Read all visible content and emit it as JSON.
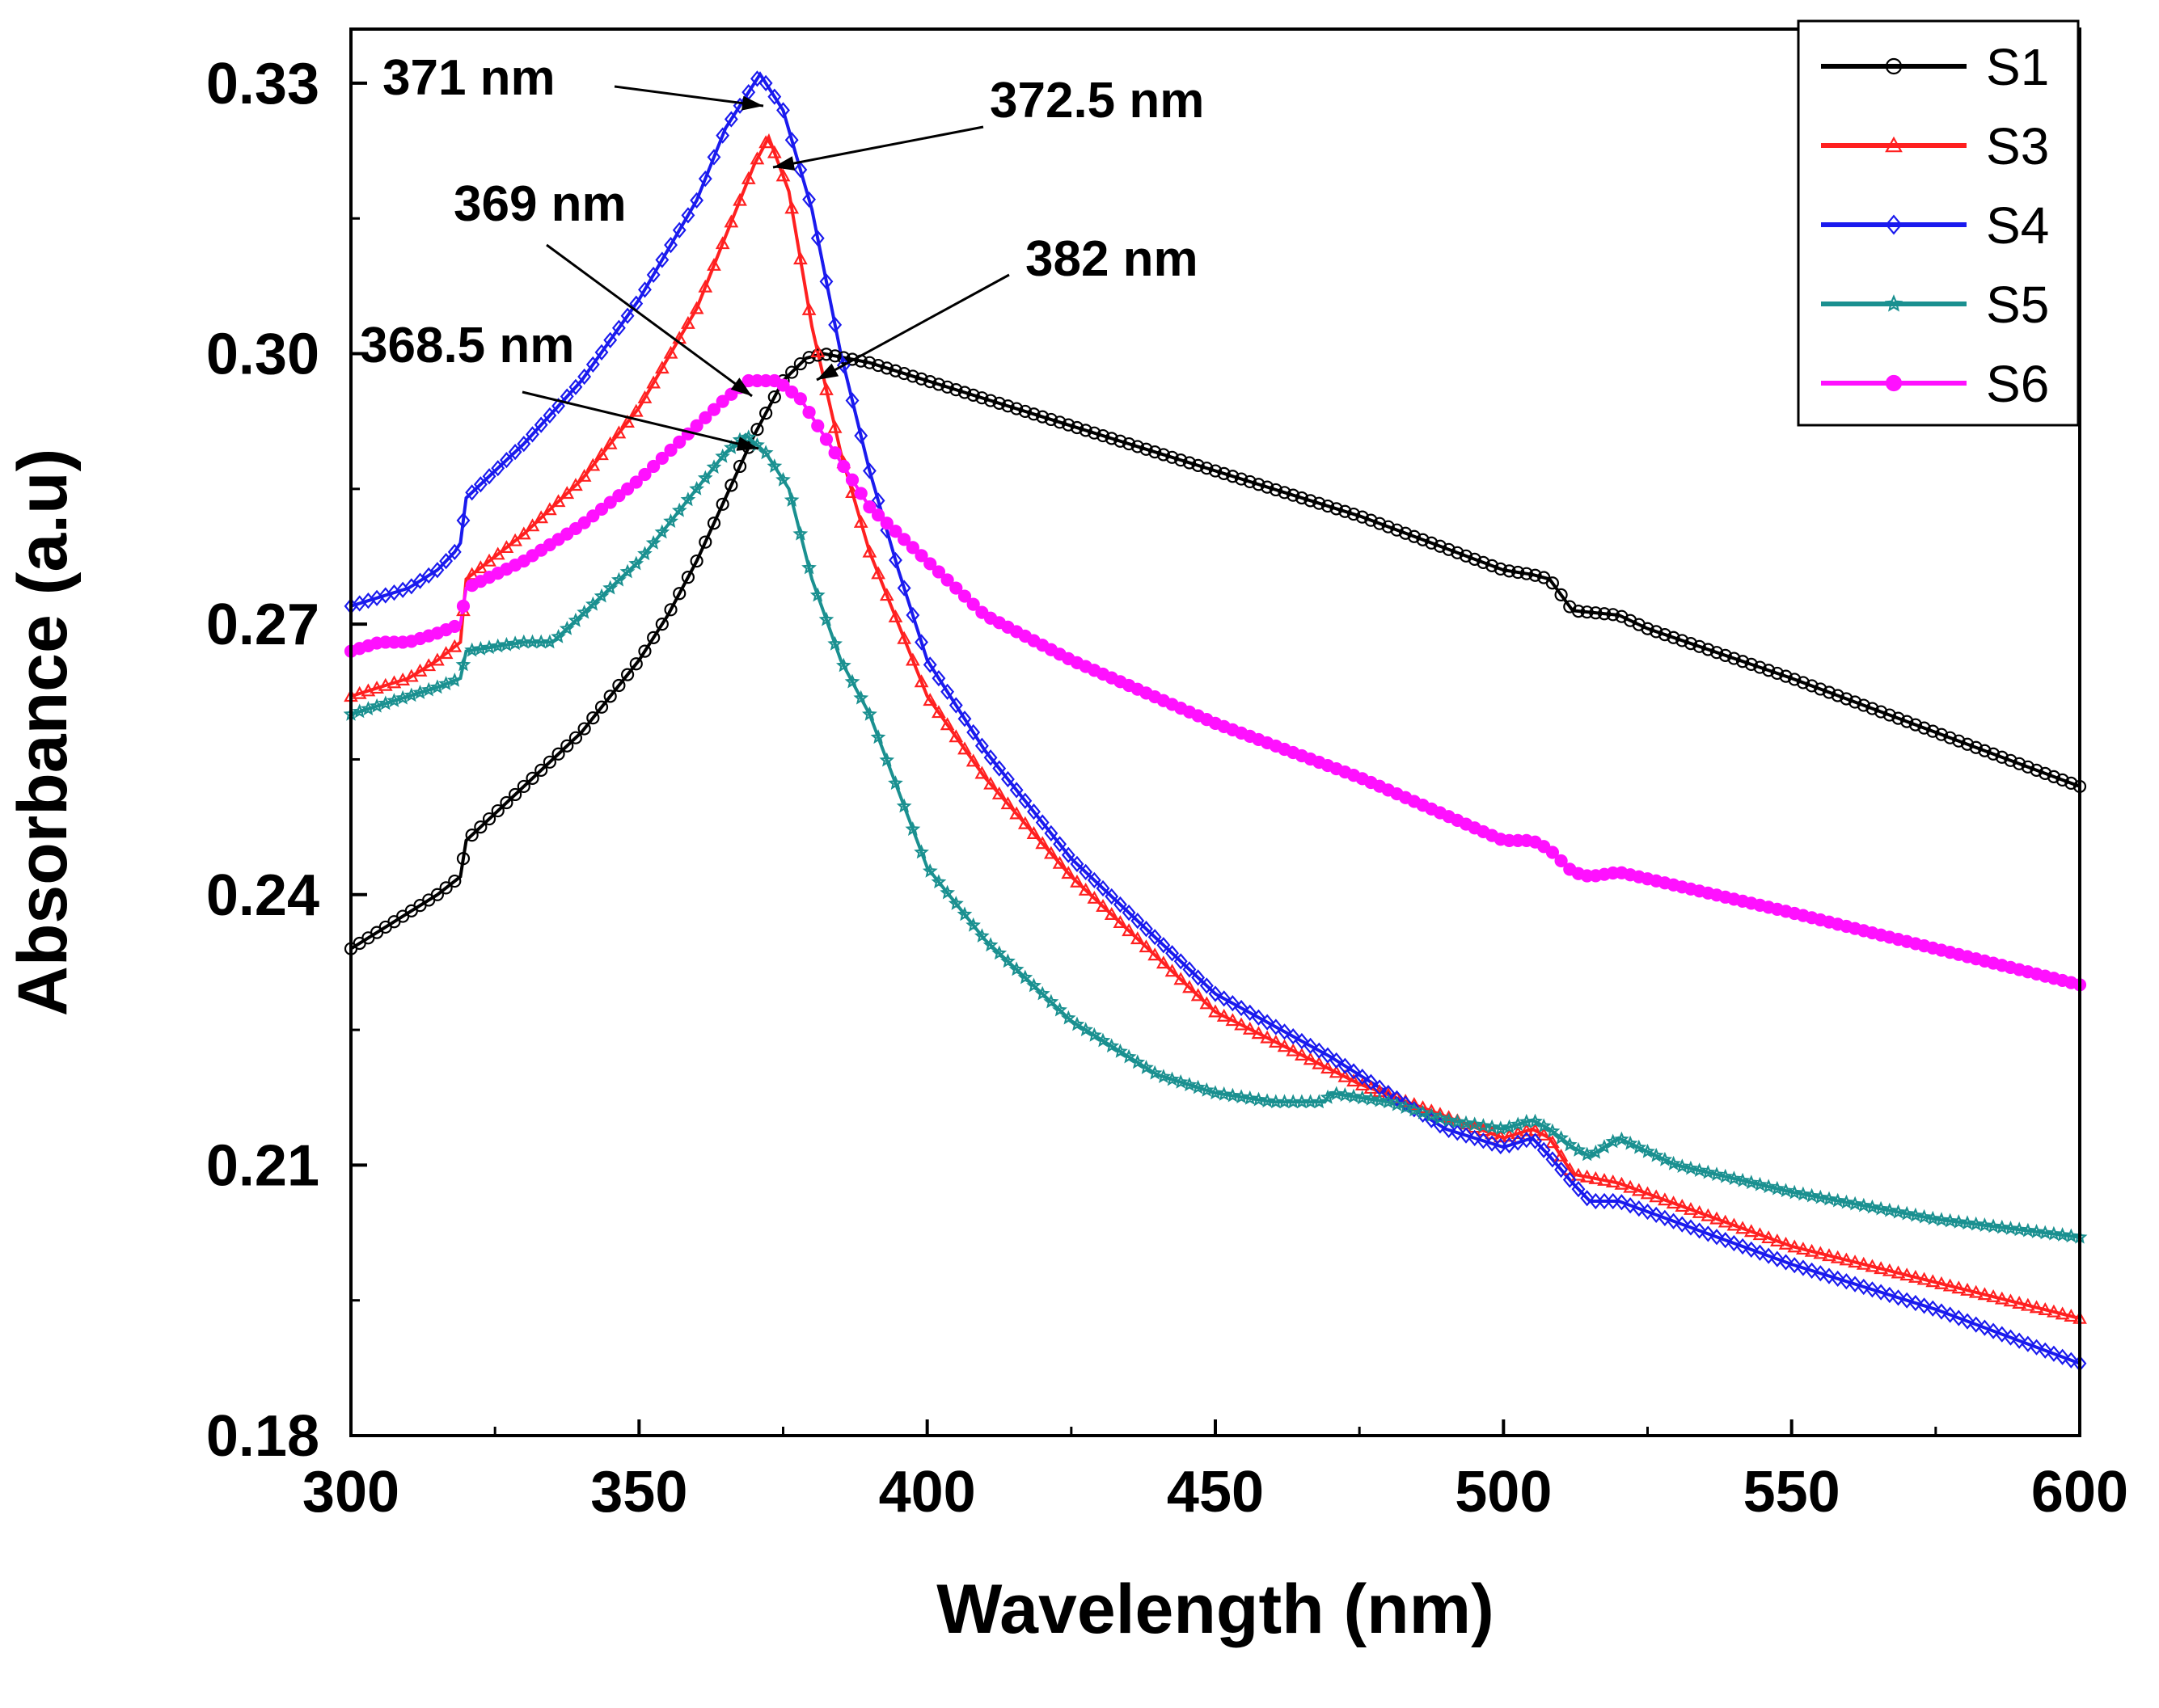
{
  "chart_data": {
    "type": "line",
    "title": "",
    "xlabel": "Wavelength (nm)",
    "ylabel": "Absorbance (a.u)",
    "xlim": [
      300,
      600
    ],
    "ylim": [
      0.18,
      0.34
    ],
    "xticks": [
      300,
      350,
      400,
      450,
      500,
      550,
      600
    ],
    "xtick_labels": [
      "300",
      "350",
      "400",
      "450",
      "500",
      "550",
      "600"
    ],
    "yticks": [
      0.18,
      0.21,
      0.24,
      0.27,
      0.3,
      0.33
    ],
    "ytick_labels": [
      "0.18",
      "0.21",
      "0.24",
      "0.27",
      "0.30",
      "0.33"
    ],
    "grid": false,
    "legend_position": "top-right",
    "series": [
      {
        "name": "S1",
        "color": "#000000",
        "marker": "circle",
        "points": [
          [
            300,
            0.234
          ],
          [
            305,
            0.236
          ],
          [
            310,
            0.238
          ],
          [
            315,
            0.24
          ],
          [
            319,
            0.242
          ],
          [
            320,
            0.246
          ],
          [
            325,
            0.249
          ],
          [
            330,
            0.252
          ],
          [
            335,
            0.255
          ],
          [
            340,
            0.258
          ],
          [
            345,
            0.262
          ],
          [
            350,
            0.266
          ],
          [
            355,
            0.271
          ],
          [
            360,
            0.277
          ],
          [
            365,
            0.284
          ],
          [
            370,
            0.291
          ],
          [
            375,
            0.297
          ],
          [
            379,
            0.2995
          ],
          [
            382,
            0.3
          ],
          [
            390,
            0.299
          ],
          [
            400,
            0.297
          ],
          [
            425,
            0.292
          ],
          [
            450,
            0.287
          ],
          [
            475,
            0.282
          ],
          [
            500,
            0.276
          ],
          [
            505,
            0.2755
          ],
          [
            508,
            0.275
          ],
          [
            512,
            0.2715
          ],
          [
            520,
            0.271
          ],
          [
            525,
            0.2695
          ],
          [
            550,
            0.264
          ],
          [
            575,
            0.258
          ],
          [
            600,
            0.252
          ]
        ]
      },
      {
        "name": "S3",
        "color": "#ff2020",
        "marker": "triangle",
        "points": [
          [
            300,
            0.262
          ],
          [
            305,
            0.263
          ],
          [
            310,
            0.264
          ],
          [
            315,
            0.266
          ],
          [
            319,
            0.268
          ],
          [
            320,
            0.275
          ],
          [
            330,
            0.28
          ],
          [
            340,
            0.286
          ],
          [
            350,
            0.294
          ],
          [
            360,
            0.305
          ],
          [
            365,
            0.313
          ],
          [
            370,
            0.321
          ],
          [
            372.5,
            0.324
          ],
          [
            376,
            0.318
          ],
          [
            380,
            0.303
          ],
          [
            385,
            0.289
          ],
          [
            390,
            0.278
          ],
          [
            400,
            0.262
          ],
          [
            410,
            0.253
          ],
          [
            425,
            0.242
          ],
          [
            450,
            0.227
          ],
          [
            475,
            0.219
          ],
          [
            500,
            0.213
          ],
          [
            505,
            0.214
          ],
          [
            508,
            0.213
          ],
          [
            512,
            0.209
          ],
          [
            520,
            0.208
          ],
          [
            550,
            0.201
          ],
          [
            575,
            0.197
          ],
          [
            600,
            0.193
          ]
        ]
      },
      {
        "name": "S4",
        "color": "#1a1aee",
        "marker": "diamond",
        "points": [
          [
            300,
            0.272
          ],
          [
            305,
            0.273
          ],
          [
            310,
            0.274
          ],
          [
            315,
            0.276
          ],
          [
            318,
            0.278
          ],
          [
            319,
            0.279
          ],
          [
            320,
            0.284
          ],
          [
            330,
            0.29
          ],
          [
            340,
            0.297
          ],
          [
            350,
            0.306
          ],
          [
            360,
            0.317
          ],
          [
            365,
            0.325
          ],
          [
            370,
            0.33
          ],
          [
            371,
            0.331
          ],
          [
            375,
            0.327
          ],
          [
            380,
            0.316
          ],
          [
            385,
            0.3
          ],
          [
            390,
            0.287
          ],
          [
            395,
            0.276
          ],
          [
            400,
            0.266
          ],
          [
            410,
            0.256
          ],
          [
            425,
            0.244
          ],
          [
            450,
            0.229
          ],
          [
            470,
            0.222
          ],
          [
            490,
            0.214
          ],
          [
            500,
            0.212
          ],
          [
            505,
            0.213
          ],
          [
            508,
            0.211
          ],
          [
            512,
            0.208
          ],
          [
            515,
            0.206
          ],
          [
            520,
            0.206
          ],
          [
            550,
            0.199
          ],
          [
            575,
            0.194
          ],
          [
            600,
            0.188
          ]
        ]
      },
      {
        "name": "S5",
        "color": "#1a9090",
        "marker": "star",
        "points": [
          [
            300,
            0.26
          ],
          [
            305,
            0.261
          ],
          [
            310,
            0.262
          ],
          [
            315,
            0.263
          ],
          [
            319,
            0.264
          ],
          [
            320,
            0.267
          ],
          [
            330,
            0.268
          ],
          [
            335,
            0.268
          ],
          [
            340,
            0.271
          ],
          [
            350,
            0.277
          ],
          [
            360,
            0.285
          ],
          [
            365,
            0.289
          ],
          [
            368.5,
            0.291
          ],
          [
            372,
            0.289
          ],
          [
            376,
            0.285
          ],
          [
            380,
            0.275
          ],
          [
            385,
            0.266
          ],
          [
            390,
            0.26
          ],
          [
            400,
            0.243
          ],
          [
            410,
            0.235
          ],
          [
            425,
            0.226
          ],
          [
            440,
            0.22
          ],
          [
            450,
            0.218
          ],
          [
            460,
            0.217
          ],
          [
            469,
            0.217
          ],
          [
            470,
            0.218
          ],
          [
            480,
            0.217
          ],
          [
            490,
            0.215
          ],
          [
            500,
            0.214
          ],
          [
            505,
            0.215
          ],
          [
            508,
            0.214
          ],
          [
            512,
            0.212
          ],
          [
            515,
            0.211
          ],
          [
            520,
            0.213
          ],
          [
            530,
            0.21
          ],
          [
            550,
            0.207
          ],
          [
            575,
            0.204
          ],
          [
            600,
            0.202
          ]
        ]
      },
      {
        "name": "S6",
        "color": "#ff10ff",
        "marker": "circle-filled",
        "points": [
          [
            300,
            0.267
          ],
          [
            305,
            0.268
          ],
          [
            310,
            0.268
          ],
          [
            315,
            0.269
          ],
          [
            319,
            0.27
          ],
          [
            320,
            0.274
          ],
          [
            330,
            0.277
          ],
          [
            340,
            0.281
          ],
          [
            350,
            0.286
          ],
          [
            360,
            0.292
          ],
          [
            365,
            0.295
          ],
          [
            369,
            0.297
          ],
          [
            374,
            0.297
          ],
          [
            378,
            0.295
          ],
          [
            382,
            0.291
          ],
          [
            387,
            0.286
          ],
          [
            390,
            0.283
          ],
          [
            400,
            0.277
          ],
          [
            410,
            0.271
          ],
          [
            425,
            0.266
          ],
          [
            450,
            0.259
          ],
          [
            475,
            0.253
          ],
          [
            500,
            0.246
          ],
          [
            505,
            0.246
          ],
          [
            508,
            0.245
          ],
          [
            512,
            0.2425
          ],
          [
            515,
            0.242
          ],
          [
            520,
            0.2425
          ],
          [
            550,
            0.238
          ],
          [
            575,
            0.234
          ],
          [
            600,
            0.23
          ]
        ]
      }
    ],
    "annotations": [
      {
        "text": "371 nm",
        "x": 371,
        "y": 0.331,
        "series": "S4"
      },
      {
        "text": "372.5 nm",
        "x": 372.5,
        "y": 0.324,
        "series": "S3"
      },
      {
        "text": "369 nm",
        "x": 369,
        "y": 0.297,
        "series": "S6"
      },
      {
        "text": "382 nm",
        "x": 382,
        "y": 0.3,
        "series": "S1"
      },
      {
        "text": "368.5 nm",
        "x": 368.5,
        "y": 0.291,
        "series": "S5"
      }
    ]
  }
}
